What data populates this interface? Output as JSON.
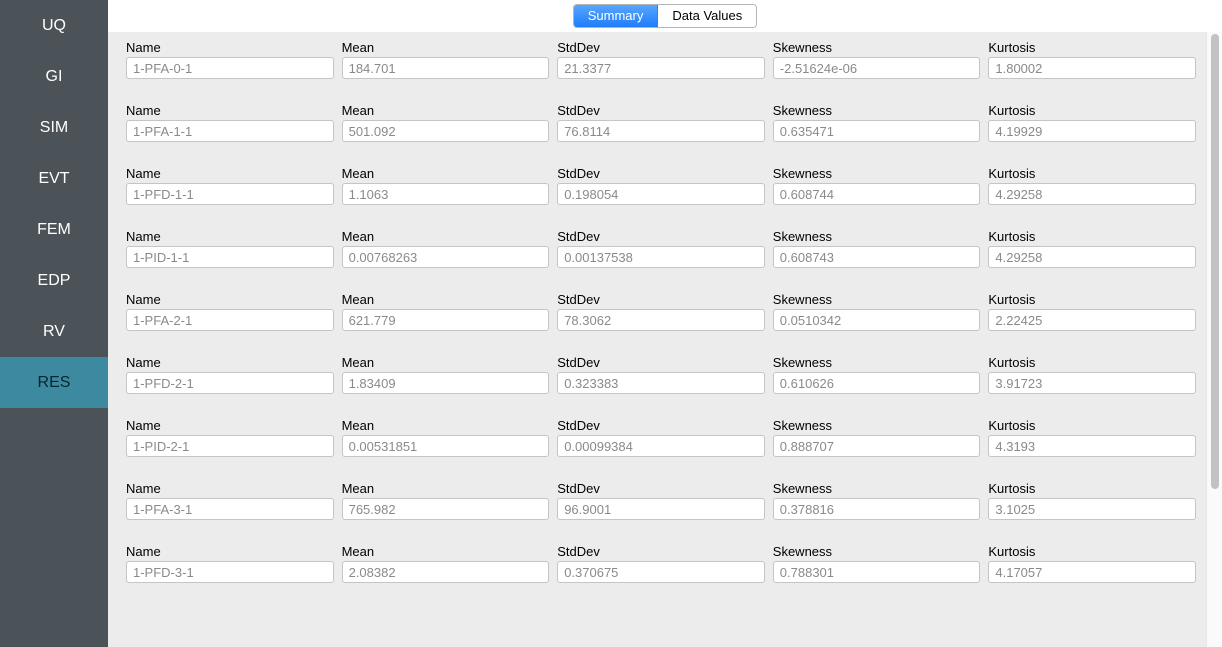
{
  "sidebar_items": [
    {
      "label": "UQ",
      "name": "sidebar-item-uq",
      "active": false
    },
    {
      "label": "GI",
      "name": "sidebar-item-gi",
      "active": false
    },
    {
      "label": "SIM",
      "name": "sidebar-item-sim",
      "active": false
    },
    {
      "label": "EVT",
      "name": "sidebar-item-evt",
      "active": false
    },
    {
      "label": "FEM",
      "name": "sidebar-item-fem",
      "active": false
    },
    {
      "label": "EDP",
      "name": "sidebar-item-edp",
      "active": false
    },
    {
      "label": "RV",
      "name": "sidebar-item-rv",
      "active": false
    },
    {
      "label": "RES",
      "name": "sidebar-item-res",
      "active": true
    }
  ],
  "tabs": [
    {
      "label": "Summary",
      "name": "tab-summary",
      "active": true
    },
    {
      "label": "Data Values",
      "name": "tab-data-values",
      "active": false
    }
  ],
  "column_labels": {
    "name": "Name",
    "mean": "Mean",
    "stddev": "StdDev",
    "skewness": "Skewness",
    "kurtosis": "Kurtosis"
  },
  "rows": [
    {
      "name": "1-PFA-0-1",
      "mean": "184.701",
      "stddev": "21.3377",
      "skewness": "-2.51624e-06",
      "kurtosis": "1.80002"
    },
    {
      "name": "1-PFA-1-1",
      "mean": "501.092",
      "stddev": "76.8114",
      "skewness": "0.635471",
      "kurtosis": "4.19929"
    },
    {
      "name": "1-PFD-1-1",
      "mean": "1.1063",
      "stddev": "0.198054",
      "skewness": "0.608744",
      "kurtosis": "4.29258"
    },
    {
      "name": "1-PID-1-1",
      "mean": "0.00768263",
      "stddev": "0.00137538",
      "skewness": "0.608743",
      "kurtosis": "4.29258"
    },
    {
      "name": "1-PFA-2-1",
      "mean": "621.779",
      "stddev": "78.3062",
      "skewness": "0.0510342",
      "kurtosis": "2.22425"
    },
    {
      "name": "1-PFD-2-1",
      "mean": "1.83409",
      "stddev": "0.323383",
      "skewness": "0.610626",
      "kurtosis": "3.91723"
    },
    {
      "name": "1-PID-2-1",
      "mean": "0.00531851",
      "stddev": "0.00099384",
      "skewness": "0.888707",
      "kurtosis": "4.3193"
    },
    {
      "name": "1-PFA-3-1",
      "mean": "765.982",
      "stddev": "96.9001",
      "skewness": "0.378816",
      "kurtosis": "3.1025"
    },
    {
      "name": "1-PFD-3-1",
      "mean": "2.08382",
      "stddev": "0.370675",
      "skewness": "0.788301",
      "kurtosis": "4.17057"
    }
  ],
  "colors": {
    "sidebar_bg": "#4b5358",
    "sidebar_active_bg": "#3d8aa0",
    "sidebar_text": "#ffffff",
    "sidebar_active_text": "#06262f",
    "content_bg": "#ececec",
    "tab_active_bg_top": "#57a7fd",
    "tab_active_bg_bottom": "#1f7cfa",
    "input_border": "#c5c5c5",
    "input_text": "#8a8a8a",
    "scrollbar_thumb": "#c2c2c2"
  }
}
